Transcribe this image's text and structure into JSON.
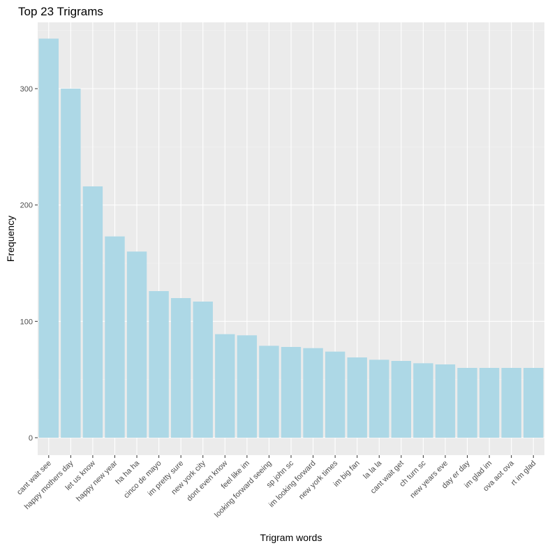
{
  "chart_data": {
    "type": "bar",
    "title": "Top 23 Trigrams",
    "xlabel": "Trigram words",
    "ylabel": "Frequency",
    "categories": [
      "cant wait see",
      "happy mothers day",
      "let us know",
      "happy new year",
      "ha ha ha",
      "cinco de mayo",
      "im pretty sure",
      "new york city",
      "dont even know",
      "feel like im",
      "looking forward seeing",
      "sp john sc",
      "im looking forward",
      "new york times",
      "im big fan",
      "la la la",
      "cant wait get",
      "ch turn sc",
      "new years eve",
      "day er day",
      "im glad im",
      "ova aot ova",
      "rt im glad"
    ],
    "values": [
      343,
      300,
      216,
      173,
      160,
      126,
      120,
      117,
      89,
      88,
      79,
      78,
      77,
      74,
      69,
      67,
      66,
      64,
      63,
      60,
      60,
      60,
      60
    ],
    "ylim": [
      -15,
      357
    ],
    "yticks": [
      0,
      100,
      200,
      300
    ],
    "grid": true,
    "legend": "none",
    "colors": {
      "bar": "#add8e6",
      "panel": "#ebebeb",
      "grid_major": "#ffffff",
      "grid_minor": "#f4f4f4"
    }
  }
}
